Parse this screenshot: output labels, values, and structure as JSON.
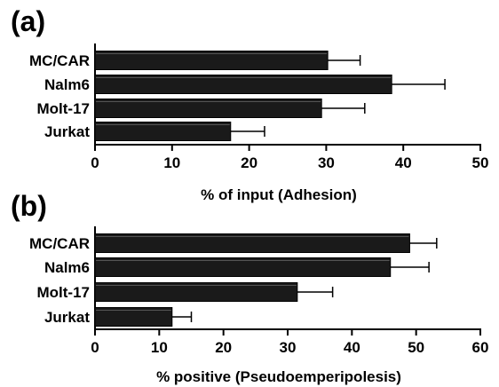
{
  "chart_data": [
    {
      "type": "bar",
      "orientation": "horizontal",
      "panel_label": "(a)",
      "categories": [
        "MC/CAR",
        "Nalm6",
        "Molt-17",
        "Jurkat"
      ],
      "values": [
        30.2,
        38.5,
        29.4,
        17.6
      ],
      "error": [
        4.2,
        6.9,
        5.6,
        4.4
      ],
      "xlabel": "% of input (Adhesion)",
      "xlim": [
        0,
        50
      ],
      "xticks": [
        0,
        10,
        20,
        30,
        40,
        50
      ],
      "bar_color": "#1a1a1a",
      "grid": false
    },
    {
      "type": "bar",
      "orientation": "horizontal",
      "panel_label": "(b)",
      "categories": [
        "MC/CAR",
        "Nalm6",
        "Molt-17",
        "Jurkat"
      ],
      "values": [
        49,
        46,
        31.5,
        12
      ],
      "error": [
        4.2,
        6,
        5.5,
        3
      ],
      "xlabel": "% positive (Pseudoemperipolesis)",
      "xlim": [
        0,
        60
      ],
      "xticks": [
        0,
        10,
        20,
        30,
        40,
        50,
        60
      ],
      "bar_color": "#1a1a1a",
      "grid": false
    }
  ]
}
